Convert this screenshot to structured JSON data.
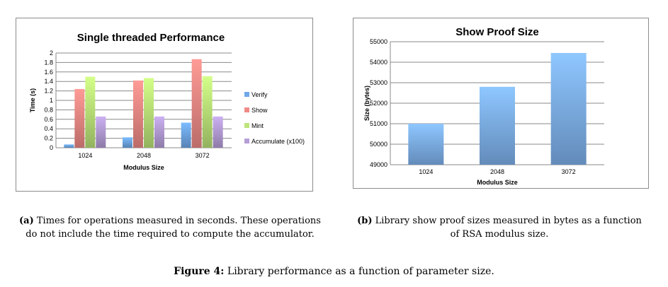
{
  "chart_data": [
    {
      "type": "bar",
      "title": "Single threaded Performance",
      "xlabel": "Modulus Size",
      "ylabel": "Time (s)",
      "categories": [
        "1024",
        "2048",
        "3072"
      ],
      "ylim": [
        0,
        2
      ],
      "yticks": [
        "0",
        "0.2",
        "0.4",
        "0.6",
        "0.8",
        "1",
        "1.2",
        "1.4",
        "1.6",
        "1.8",
        "2"
      ],
      "grid": true,
      "legend": "right",
      "series": [
        {
          "name": "Verify",
          "values": [
            0.07,
            0.22,
            0.53
          ],
          "color": "#6fa8e8"
        },
        {
          "name": "Show",
          "values": [
            1.24,
            1.42,
            1.87
          ],
          "color": "#f08a86"
        },
        {
          "name": "Mint",
          "values": [
            1.5,
            1.47,
            1.51
          ],
          "color": "#bde47a"
        },
        {
          "name": "Accumulate (x100)",
          "values": [
            0.66,
            0.66,
            0.66
          ],
          "color": "#b69ed8"
        }
      ]
    },
    {
      "type": "bar",
      "title": "Show Proof Size",
      "xlabel": "Modulus Size",
      "ylabel": "Size (bytes)",
      "categories": [
        "1024",
        "2048",
        "3072"
      ],
      "ylim": [
        49000,
        55000
      ],
      "yticks": [
        "49000",
        "50000",
        "51000",
        "52000",
        "53000",
        "54000",
        "55000"
      ],
      "grid": true,
      "legend": "none",
      "series": [
        {
          "values": [
            51000,
            52800,
            54450
          ],
          "color": "#7fb2ee"
        }
      ]
    }
  ],
  "captions": {
    "a_label": "(a)",
    "a_text": "Times for operations measured in seconds. These operations do not include the time required to compute the accumulator.",
    "b_label": "(b)",
    "b_text": "Library show proof sizes measured in bytes as a function of RSA modulus size.",
    "figure_label": "Figure 4:",
    "figure_text": "Library performance as a function of parameter size."
  }
}
